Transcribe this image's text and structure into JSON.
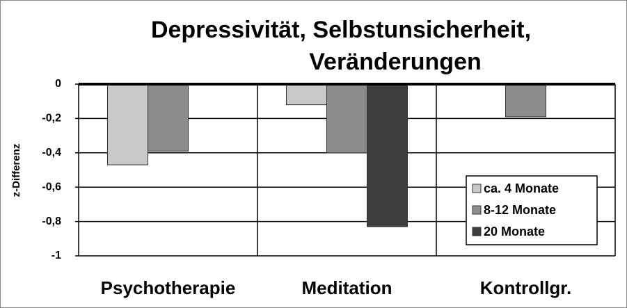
{
  "chart_data": {
    "type": "bar",
    "title": [
      "Depressivität, Selbstunsicherheit,",
      "Veränderungen"
    ],
    "y_label": "z-Differenz",
    "categories": [
      "Psychotherapie",
      "Meditation",
      "Kontrollgr."
    ],
    "series": [
      {
        "name": "ca. 4 Monate",
        "color": "#c8c8c8",
        "values": [
          -0.47,
          -0.12,
          null
        ]
      },
      {
        "name": "8-12 Monate",
        "color": "#8c8c8c",
        "values": [
          -0.39,
          -0.4,
          -0.19
        ]
      },
      {
        "name": "20 Monate",
        "color": "#3c3c3c",
        "values": [
          null,
          -0.83,
          null
        ]
      }
    ],
    "ylim": [
      -1,
      0
    ],
    "yticks": [
      0,
      {
        "value": -0.2,
        "label": "-0,2"
      },
      {
        "value": -0.4,
        "label": "-0,4"
      },
      {
        "value": -0.6,
        "label": "-0,6"
      },
      {
        "value": -0.8,
        "label": "-0,8"
      },
      -1
    ],
    "grid": true,
    "legend": "lower right"
  }
}
